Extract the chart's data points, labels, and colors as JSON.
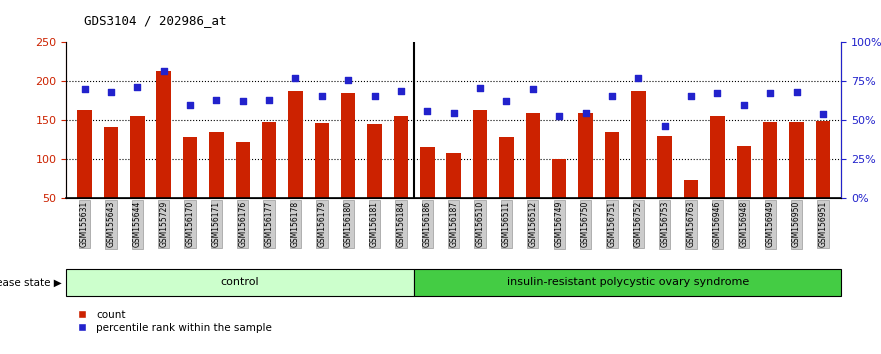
{
  "title": "GDS3104 / 202986_at",
  "samples": [
    "GSM155631",
    "GSM155643",
    "GSM155644",
    "GSM155729",
    "GSM156170",
    "GSM156171",
    "GSM156176",
    "GSM156177",
    "GSM156178",
    "GSM156179",
    "GSM156180",
    "GSM156181",
    "GSM156184",
    "GSM156186",
    "GSM156187",
    "GSM156510",
    "GSM156511",
    "GSM156512",
    "GSM156749",
    "GSM156750",
    "GSM156751",
    "GSM156752",
    "GSM156753",
    "GSM156763",
    "GSM156946",
    "GSM156948",
    "GSM156949",
    "GSM156950",
    "GSM156951"
  ],
  "counts": [
    163,
    141,
    155,
    213,
    128,
    135,
    122,
    148,
    188,
    146,
    185,
    145,
    155,
    116,
    108,
    163,
    129,
    160,
    101,
    160,
    135,
    188,
    130,
    73,
    155,
    117,
    148,
    148,
    149
  ],
  "percentile_left_vals": [
    190,
    186,
    193,
    213,
    170,
    176,
    175,
    176,
    205,
    181,
    202,
    181,
    188,
    162,
    159,
    191,
    175,
    190,
    156,
    160,
    181,
    205,
    143,
    181,
    185,
    170,
    185,
    187,
    158
  ],
  "n_control": 13,
  "control_label": "control",
  "disease_label": "insulin-resistant polycystic ovary syndrome",
  "left_ylim": [
    50,
    250
  ],
  "right_ylim": [
    0,
    100
  ],
  "left_yticks": [
    50,
    100,
    150,
    200,
    250
  ],
  "right_yticks": [
    0,
    25,
    50,
    75,
    100
  ],
  "right_yticklabels": [
    "0%",
    "25%",
    "50%",
    "75%",
    "100%"
  ],
  "hgrid_vals": [
    100,
    150,
    200
  ],
  "bar_color": "#cc2200",
  "dot_color": "#2222cc",
  "control_bg": "#ccffcc",
  "disease_bg": "#44cc44",
  "ticklabel_bg": "#cccccc",
  "ticklabel_ec": "#999999",
  "label_bar": "count",
  "label_dot": "percentile rank within the sample",
  "bar_width": 0.55
}
